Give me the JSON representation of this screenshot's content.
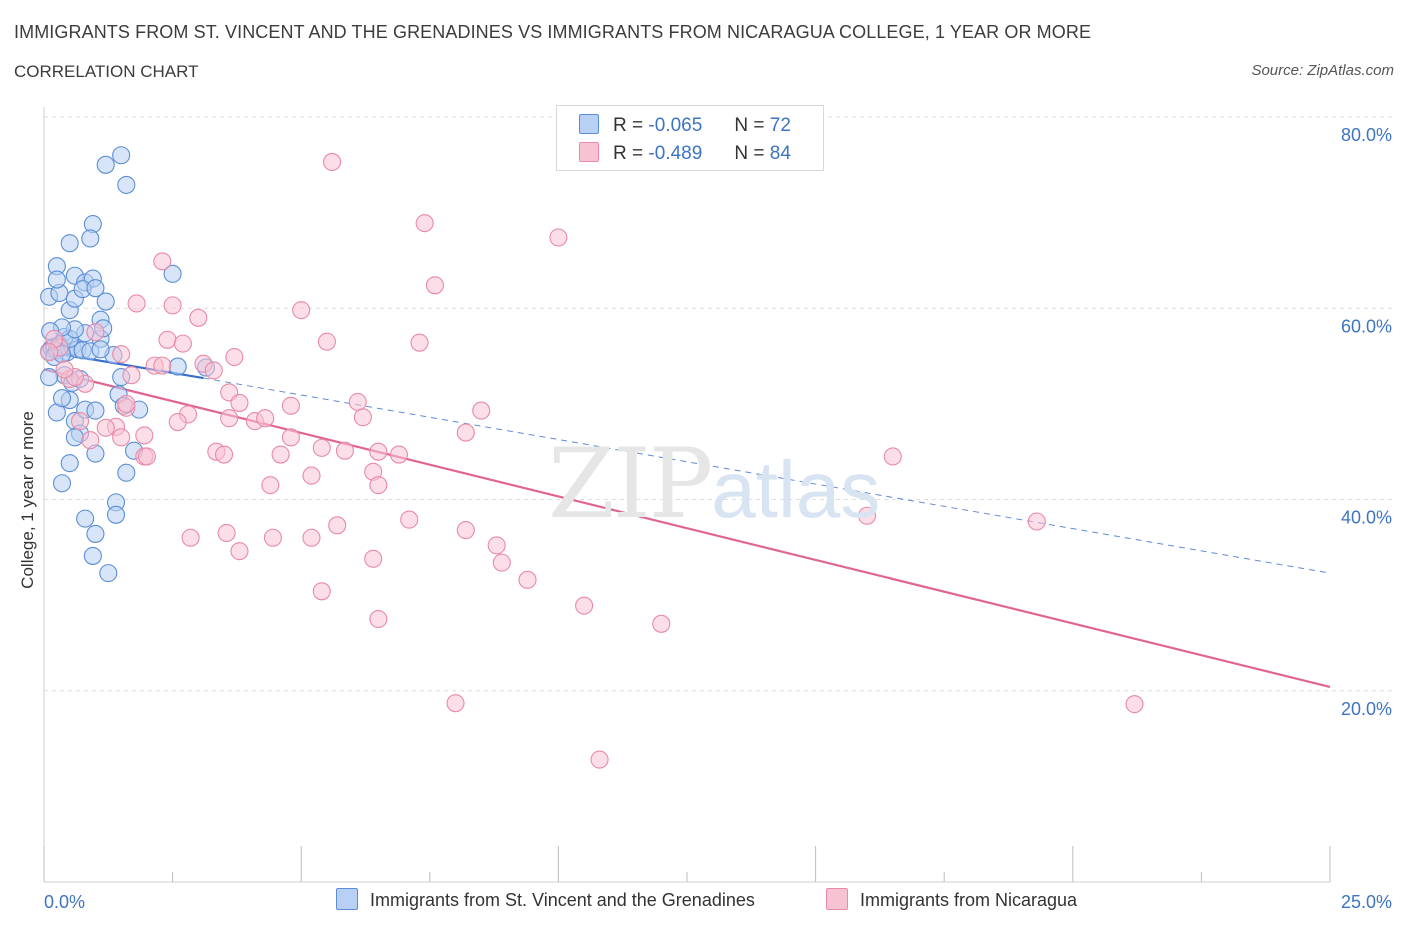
{
  "header": {
    "title": "IMMIGRANTS FROM ST. VINCENT AND THE GRENADINES VS IMMIGRANTS FROM NICARAGUA COLLEGE, 1 YEAR OR MORE",
    "subtitle": "CORRELATION CHART",
    "source": "Source: ZipAtlas.com"
  },
  "watermark": {
    "zip": "ZIP",
    "atlas": "atlas"
  },
  "legend_top": {
    "rows": [
      {
        "r_label": "R =",
        "r_value": "-0.065",
        "n_label": "N =",
        "n_value": "72"
      },
      {
        "r_label": "R =",
        "r_value": "-0.489",
        "n_label": "N =",
        "n_value": "84"
      }
    ]
  },
  "colors": {
    "blue_fill": "#b8d0f3",
    "blue_stroke": "#5b8ed6",
    "blue_line": "#3a6fc9",
    "pink_fill": "#f7c3d3",
    "pink_stroke": "#e88aa8",
    "pink_line": "#e0668f",
    "tick_label": "#3d74c4",
    "grid": "#dedede"
  },
  "chart_data": {
    "type": "scatter",
    "title": "IMMIGRANTS FROM ST. VINCENT AND THE GRENADINES VS IMMIGRANTS FROM NICARAGUA COLLEGE, 1 YEAR OR MORE",
    "ylabel": "College, 1 year or more",
    "xlabel": "",
    "xlim": [
      0,
      25
    ],
    "ylim": [
      0,
      80
    ],
    "x_tick_labels": [
      "0.0%",
      "25.0%"
    ],
    "y_ticks": [
      20,
      40,
      60,
      80
    ],
    "y_tick_labels": [
      "20.0%",
      "40.0%",
      "60.0%",
      "80.0%"
    ],
    "grid": true,
    "legend_position": "bottom",
    "series": [
      {
        "name": "Immigrants from St. Vincent and the Grenadines",
        "color": "#5b8ed6",
        "trend": {
          "x": [
            0,
            3.1
          ],
          "y": [
            55.5,
            52.7
          ],
          "dashed_extension": {
            "x": [
              3.1,
              25
            ],
            "y": [
              52.7,
              32.3
            ]
          }
        },
        "points": [
          [
            0.1,
            55.5
          ],
          [
            0.15,
            55.8
          ],
          [
            0.2,
            56.0
          ],
          [
            0.25,
            55.6
          ],
          [
            0.3,
            56.2
          ],
          [
            0.35,
            55.9
          ],
          [
            0.45,
            55.4
          ],
          [
            0.55,
            56.0
          ],
          [
            0.65,
            55.7
          ],
          [
            0.75,
            55.6
          ],
          [
            0.9,
            55.5
          ],
          [
            0.4,
            57.0
          ],
          [
            0.5,
            56.8
          ],
          [
            0.8,
            57.4
          ],
          [
            1.1,
            56.8
          ],
          [
            1.1,
            58.8
          ],
          [
            1.15,
            57.9
          ],
          [
            0.6,
            57.8
          ],
          [
            0.35,
            58.0
          ],
          [
            0.12,
            57.6
          ],
          [
            0.1,
            61.2
          ],
          [
            0.3,
            61.6
          ],
          [
            0.5,
            59.8
          ],
          [
            0.6,
            61.0
          ],
          [
            0.6,
            63.4
          ],
          [
            1.2,
            60.7
          ],
          [
            0.8,
            62.7
          ],
          [
            0.95,
            63.1
          ],
          [
            0.25,
            64.4
          ],
          [
            0.25,
            63.0
          ],
          [
            0.5,
            66.8
          ],
          [
            0.75,
            62.0
          ],
          [
            1.0,
            62.1
          ],
          [
            2.5,
            63.6
          ],
          [
            0.4,
            53.0
          ],
          [
            0.55,
            52.2
          ],
          [
            0.1,
            52.8
          ],
          [
            0.7,
            52.6
          ],
          [
            1.35,
            55.1
          ],
          [
            1.5,
            52.8
          ],
          [
            1.45,
            51.0
          ],
          [
            1.55,
            49.8
          ],
          [
            1.85,
            49.4
          ],
          [
            0.5,
            50.4
          ],
          [
            0.25,
            49.1
          ],
          [
            0.35,
            50.6
          ],
          [
            0.6,
            48.2
          ],
          [
            0.8,
            49.4
          ],
          [
            1.0,
            49.3
          ],
          [
            0.7,
            46.9
          ],
          [
            0.6,
            46.5
          ],
          [
            0.5,
            43.8
          ],
          [
            1.0,
            44.8
          ],
          [
            1.6,
            42.8
          ],
          [
            1.75,
            45.1
          ],
          [
            0.35,
            41.7
          ],
          [
            1.4,
            39.7
          ],
          [
            1.4,
            38.4
          ],
          [
            0.8,
            38.0
          ],
          [
            1.0,
            36.4
          ],
          [
            0.95,
            34.1
          ],
          [
            1.25,
            32.3
          ],
          [
            1.2,
            75.0
          ],
          [
            1.5,
            76.0
          ],
          [
            1.6,
            72.9
          ],
          [
            0.95,
            68.8
          ],
          [
            0.9,
            67.3
          ],
          [
            3.15,
            53.8
          ],
          [
            2.6,
            53.9
          ],
          [
            1.1,
            55.7
          ],
          [
            0.2,
            54.9
          ],
          [
            0.35,
            55.2
          ]
        ]
      },
      {
        "name": "Immigrants from Nicaragua",
        "color": "#e88aa8",
        "trend": {
          "x": [
            0,
            25
          ],
          "y": [
            53.6,
            20.4
          ]
        },
        "points": [
          [
            5.6,
            75.3
          ],
          [
            7.4,
            68.9
          ],
          [
            10.0,
            67.4
          ],
          [
            2.3,
            64.9
          ],
          [
            7.6,
            62.4
          ],
          [
            1.8,
            60.5
          ],
          [
            2.5,
            60.3
          ],
          [
            5.0,
            59.8
          ],
          [
            3.0,
            59.0
          ],
          [
            1.0,
            57.5
          ],
          [
            2.4,
            56.7
          ],
          [
            5.5,
            56.5
          ],
          [
            7.3,
            56.4
          ],
          [
            2.7,
            56.3
          ],
          [
            3.7,
            54.9
          ],
          [
            1.5,
            55.2
          ],
          [
            2.15,
            54.0
          ],
          [
            2.3,
            54.0
          ],
          [
            3.1,
            54.2
          ],
          [
            3.3,
            53.5
          ],
          [
            1.7,
            53.0
          ],
          [
            0.5,
            52.6
          ],
          [
            0.8,
            52.1
          ],
          [
            3.6,
            51.2
          ],
          [
            3.8,
            50.1
          ],
          [
            6.1,
            50.2
          ],
          [
            4.8,
            49.8
          ],
          [
            8.5,
            49.3
          ],
          [
            1.6,
            49.6
          ],
          [
            2.8,
            48.9
          ],
          [
            3.6,
            48.5
          ],
          [
            4.1,
            48.2
          ],
          [
            4.3,
            48.5
          ],
          [
            6.2,
            48.6
          ],
          [
            2.6,
            48.1
          ],
          [
            1.4,
            47.6
          ],
          [
            0.9,
            46.2
          ],
          [
            1.95,
            46.7
          ],
          [
            1.5,
            46.5
          ],
          [
            4.8,
            46.5
          ],
          [
            5.4,
            45.4
          ],
          [
            5.85,
            45.1
          ],
          [
            6.5,
            45.0
          ],
          [
            3.35,
            45.0
          ],
          [
            3.5,
            44.7
          ],
          [
            4.6,
            44.7
          ],
          [
            1.95,
            44.5
          ],
          [
            6.9,
            44.7
          ],
          [
            8.2,
            47.0
          ],
          [
            16.5,
            44.5
          ],
          [
            5.2,
            42.5
          ],
          [
            6.4,
            42.9
          ],
          [
            6.5,
            41.5
          ],
          [
            4.4,
            41.5
          ],
          [
            7.1,
            37.9
          ],
          [
            5.7,
            37.3
          ],
          [
            8.2,
            36.8
          ],
          [
            3.55,
            36.5
          ],
          [
            2.85,
            36.0
          ],
          [
            4.45,
            36.0
          ],
          [
            5.2,
            36.0
          ],
          [
            8.8,
            35.2
          ],
          [
            3.8,
            34.6
          ],
          [
            6.4,
            33.8
          ],
          [
            8.9,
            33.4
          ],
          [
            9.4,
            31.6
          ],
          [
            5.4,
            30.4
          ],
          [
            10.5,
            28.9
          ],
          [
            12.0,
            27.0
          ],
          [
            6.5,
            27.5
          ],
          [
            8.0,
            18.7
          ],
          [
            10.8,
            12.8
          ],
          [
            21.2,
            18.6
          ],
          [
            19.3,
            37.7
          ],
          [
            16.0,
            38.3
          ],
          [
            0.3,
            55.9
          ],
          [
            0.6,
            52.8
          ],
          [
            1.6,
            50.0
          ],
          [
            0.2,
            56.8
          ],
          [
            0.4,
            53.6
          ],
          [
            0.7,
            48.2
          ],
          [
            1.2,
            47.5
          ],
          [
            2.0,
            44.5
          ],
          [
            0.1,
            55.4
          ]
        ]
      }
    ]
  },
  "bottom_legend": [
    {
      "label": "Immigrants from St. Vincent and the Grenadines"
    },
    {
      "label": "Immigrants from Nicaragua"
    }
  ]
}
